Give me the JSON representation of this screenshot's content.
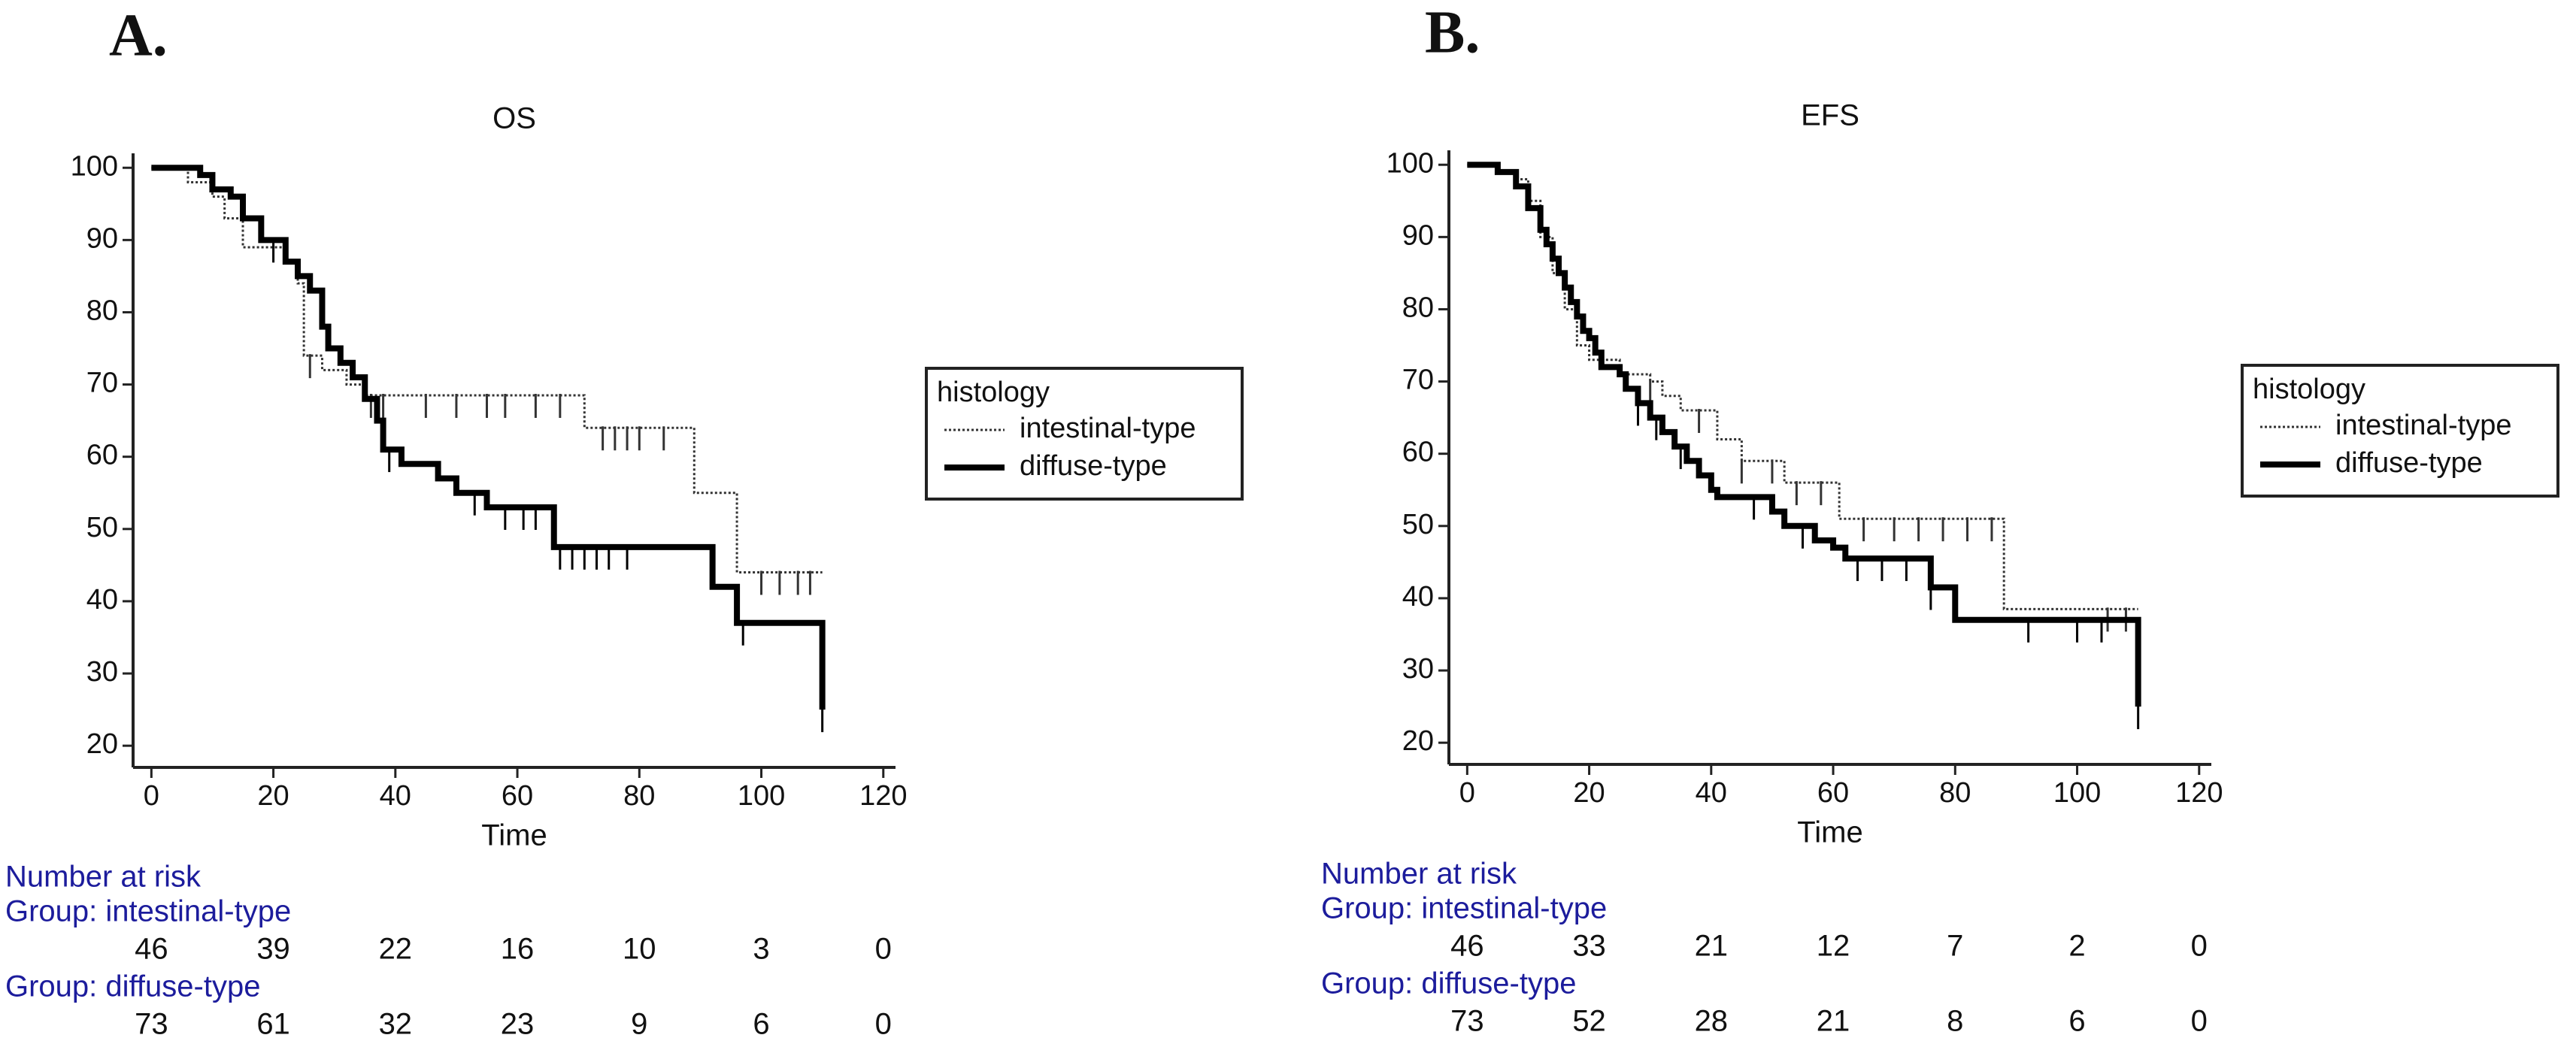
{
  "chart_data": [
    {
      "type": "step",
      "panel_label": "A.",
      "title": "OS",
      "xlabel": "Time",
      "xlim": [
        -3,
        122
      ],
      "ylim": [
        17,
        102
      ],
      "xticks": [
        0,
        20,
        40,
        60,
        80,
        100,
        120
      ],
      "yticks": [
        20,
        30,
        40,
        50,
        60,
        70,
        80,
        90,
        100
      ],
      "legend_title": "histology",
      "legend_position": "right",
      "series": [
        {
          "name": "intestinal-type",
          "color": "#333333",
          "line_style": "dotted",
          "line_width": 3,
          "x": [
            0,
            6,
            10,
            12,
            15,
            22,
            24,
            25,
            28,
            32,
            35,
            71,
            89,
            96,
            110
          ],
          "values": [
            100,
            98,
            96,
            93,
            89,
            87,
            84,
            74,
            72,
            70,
            68.5,
            64,
            55,
            44,
            44
          ],
          "censored": [
            26,
            36,
            38,
            45,
            50,
            55,
            58,
            63,
            67,
            74,
            76,
            78,
            80,
            84,
            100,
            103,
            106,
            108
          ]
        },
        {
          "name": "diffuse-type",
          "color": "#000000",
          "line_style": "solid",
          "line_width": 8,
          "x": [
            0,
            8,
            10,
            13,
            15,
            18,
            22,
            24,
            26,
            28,
            29,
            31,
            33,
            35,
            37,
            38,
            41,
            47,
            50,
            55,
            66,
            92,
            96,
            110
          ],
          "values": [
            100,
            99,
            97,
            96,
            93,
            90,
            87,
            85,
            83,
            78,
            75,
            73,
            71,
            68,
            65,
            61,
            59,
            57,
            55,
            53,
            47.5,
            42,
            37,
            25
          ],
          "censored": [
            20,
            39,
            53,
            58,
            61,
            63,
            67,
            69,
            71,
            73,
            75,
            78,
            97,
            110
          ]
        }
      ],
      "risk_table": {
        "title": "Number at risk",
        "groups": [
          {
            "label": "Group: intestinal-type",
            "counts": [
              46,
              39,
              22,
              16,
              10,
              3,
              0
            ]
          },
          {
            "label": "Group: diffuse-type",
            "counts": [
              73,
              61,
              32,
              23,
              9,
              6,
              0
            ]
          }
        ]
      }
    },
    {
      "type": "step",
      "panel_label": "B.",
      "title": "EFS",
      "xlabel": "Time",
      "xlim": [
        -3,
        122
      ],
      "ylim": [
        17,
        102
      ],
      "xticks": [
        0,
        20,
        40,
        60,
        80,
        100,
        120
      ],
      "yticks": [
        20,
        30,
        40,
        50,
        60,
        70,
        80,
        90,
        100
      ],
      "legend_title": "histology",
      "legend_position": "right",
      "series": [
        {
          "name": "intestinal-type",
          "color": "#333333",
          "line_style": "dotted",
          "line_width": 3,
          "x": [
            0,
            5,
            8,
            10,
            12,
            14,
            16,
            18,
            20,
            25,
            30,
            32,
            35,
            41,
            45,
            52,
            61,
            88,
            110
          ],
          "values": [
            100,
            99,
            98,
            95,
            90,
            85,
            80,
            75,
            73,
            71,
            70,
            68,
            66,
            62,
            59,
            56,
            51,
            38.5,
            38.5
          ],
          "censored": [
            30,
            38,
            45,
            50,
            54,
            58,
            65,
            70,
            74,
            78,
            82,
            86,
            105,
            108
          ]
        },
        {
          "name": "diffuse-type",
          "color": "#000000",
          "line_style": "solid",
          "line_width": 8,
          "x": [
            0,
            5,
            8,
            10,
            12,
            13,
            14,
            15,
            16,
            17,
            18,
            19,
            20,
            21,
            22,
            25,
            26,
            28,
            30,
            32,
            34,
            36,
            38,
            40,
            41,
            50,
            52,
            57,
            60,
            62,
            76,
            80,
            110
          ],
          "values": [
            100,
            99,
            97,
            94,
            91,
            89,
            87,
            85,
            83,
            81,
            79,
            77,
            76,
            74,
            72,
            71,
            69,
            67,
            65,
            63,
            61,
            59,
            57,
            55,
            54,
            52,
            50,
            48,
            47,
            45.5,
            41.5,
            37,
            25
          ],
          "censored": [
            28,
            31,
            35,
            47,
            55,
            64,
            68,
            72,
            76,
            92,
            100,
            104,
            110
          ]
        }
      ],
      "risk_table": {
        "title": "Number at risk",
        "groups": [
          {
            "label": "Group: intestinal-type",
            "counts": [
              46,
              33,
              21,
              12,
              7,
              2,
              0
            ]
          },
          {
            "label": "Group: diffuse-type",
            "counts": [
              73,
              52,
              28,
              21,
              8,
              6,
              0
            ]
          }
        ]
      }
    }
  ]
}
